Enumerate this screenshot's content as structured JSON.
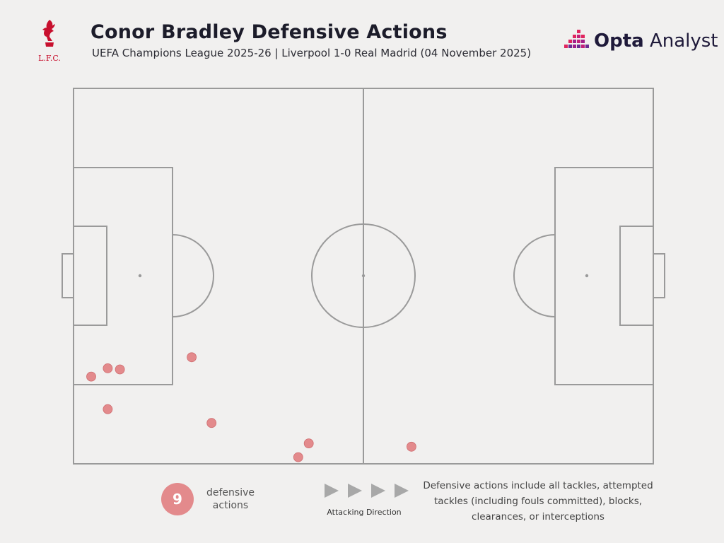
{
  "header": {
    "title": "Conor Bradley Defensive Actions",
    "subtitle": "UEFA Champions League 2025-26 | Liverpool 1-0 Real Madrid (04 November 2025)"
  },
  "crest": {
    "text": "L.F.C.",
    "color": "#c8102e"
  },
  "brand": {
    "bold": "Opta",
    "rest": " Analyst",
    "accent_colors": [
      "#e0245e",
      "#a01f8a",
      "#6a2c91"
    ]
  },
  "chart_data": {
    "type": "scatter",
    "pitch": {
      "length": 105,
      "width": 68,
      "attacking_direction": "left-to-right"
    },
    "marker_color": "#e38a8c",
    "points": [
      {
        "x": 3.2,
        "y": 15.8
      },
      {
        "x": 6.2,
        "y": 17.3
      },
      {
        "x": 8.4,
        "y": 17.1
      },
      {
        "x": 21.4,
        "y": 19.3
      },
      {
        "x": 6.2,
        "y": 9.9
      },
      {
        "x": 25.0,
        "y": 7.4
      },
      {
        "x": 42.6,
        "y": 3.7
      },
      {
        "x": 40.7,
        "y": 1.2
      },
      {
        "x": 61.2,
        "y": 3.1
      }
    ]
  },
  "legend": {
    "count": "9",
    "count_label": "defensive actions",
    "direction_label": "Attacking Direction",
    "note": "Defensive actions include all tackles, attempted tackles (including fouls committed), blocks, clearances, or interceptions"
  }
}
